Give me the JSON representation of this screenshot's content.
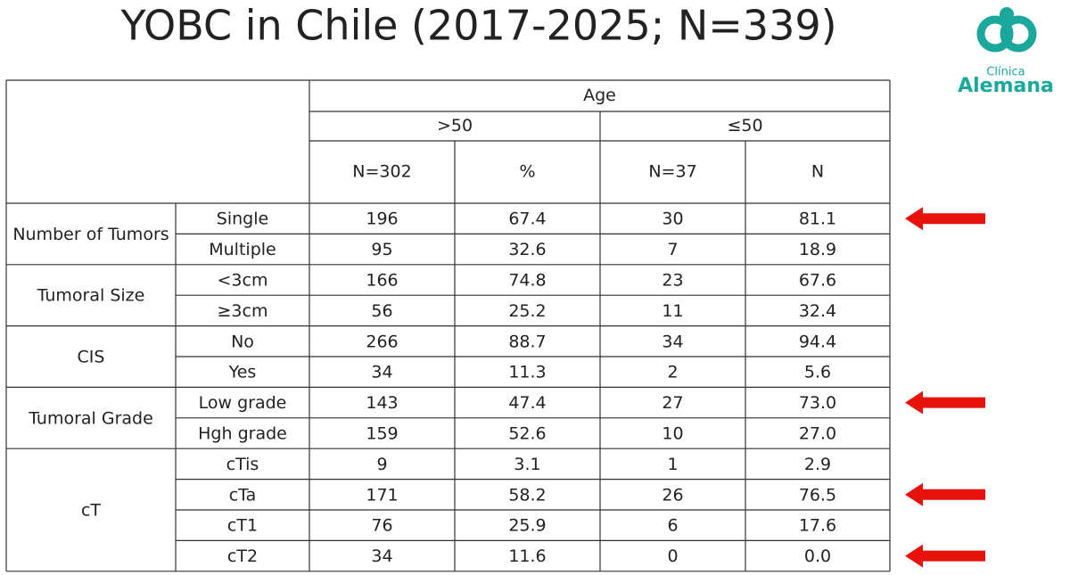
{
  "title": "YOBC in Chile (2017-2025; N=339)",
  "logo": {
    "line1": "Clínica",
    "line2": "Alemana"
  },
  "table": {
    "header": {
      "group": "Age",
      "cols": [
        ">50",
        "≤50"
      ],
      "sub": [
        "N=302",
        "%",
        "N=37",
        "N"
      ]
    },
    "groups": [
      {
        "label": "Number of Tumors",
        "rows": [
          [
            "Single",
            "196",
            "67.4",
            "30",
            "81.1"
          ],
          [
            "Multiple",
            "95",
            "32.6",
            "7",
            "18.9"
          ]
        ]
      },
      {
        "label": "Tumoral Size",
        "rows": [
          [
            "<3cm",
            "166",
            "74.8",
            "23",
            "67.6"
          ],
          [
            "≥3cm",
            "56",
            "25.2",
            "11",
            "32.4"
          ]
        ]
      },
      {
        "label": "CIS",
        "rows": [
          [
            "No",
            "266",
            "88.7",
            "34",
            "94.4"
          ],
          [
            "Yes",
            "34",
            "11.3",
            "2",
            "5.6"
          ]
        ]
      },
      {
        "label": "Tumoral Grade",
        "rows": [
          [
            "Low grade",
            "143",
            "47.4",
            "27",
            "73.0"
          ],
          [
            "Hgh grade",
            "159",
            "52.6",
            "10",
            "27.0"
          ]
        ]
      },
      {
        "label": "cT",
        "rows": [
          [
            "cTis",
            "9",
            "3.1",
            "1",
            "2.9"
          ],
          [
            "cTa",
            "171",
            "58.2",
            "26",
            "76.5"
          ],
          [
            "cT1",
            "76",
            "25.9",
            "6",
            "17.6"
          ],
          [
            "cT2",
            "34",
            "11.6",
            "0",
            "0.0"
          ]
        ]
      }
    ]
  }
}
